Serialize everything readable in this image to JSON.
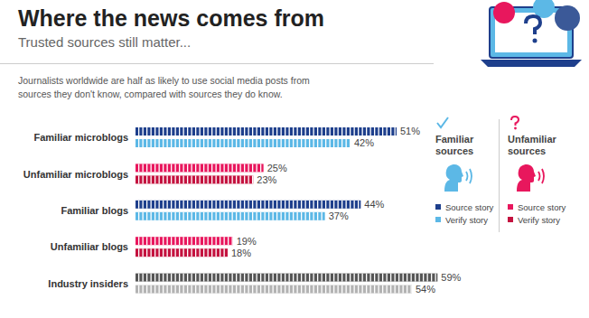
{
  "chart_data": {
    "type": "bar",
    "orientation": "horizontal",
    "title": "Where the news comes from",
    "subtitle": "Trusted sources still matter...",
    "description": [
      "Journalists worldwide are half as likely to use social media posts from",
      "sources they don't know, compared with sources they do know."
    ],
    "categories": [
      "Familiar microblogs",
      "Unfamiliar microblogs",
      "Familiar blogs",
      "Unfamiliar blogs",
      "Industry insiders"
    ],
    "xlim": [
      0,
      60
    ],
    "tick_labels": "y",
    "data_labels": true,
    "series": [
      {
        "name": "Source story",
        "colors": [
          "#1e3f8c",
          "#e8175d",
          "#1e3f8c",
          "#e8175d",
          "#555555"
        ],
        "values": [
          51,
          25,
          44,
          19,
          59
        ],
        "value_labels": [
          "51%",
          "25%",
          "44%",
          "19%",
          "59%"
        ]
      },
      {
        "name": "Verify story",
        "colors": [
          "#5cb8e6",
          "#c4123f",
          "#5cb8e6",
          "#c4123f",
          "#b3b3b3"
        ],
        "values": [
          42,
          23,
          37,
          18,
          54
        ],
        "value_labels": [
          "42%",
          "23%",
          "37%",
          "18%",
          "54%"
        ]
      }
    ],
    "legend_groups": [
      {
        "title": "Familiar sources",
        "items": [
          {
            "name": "Source story",
            "color": "#1e3f8c"
          },
          {
            "name": "Verify story",
            "color": "#5cb8e6"
          }
        ]
      },
      {
        "title": "Unfamiliar sources",
        "items": [
          {
            "name": "Source story",
            "color": "#e8175d"
          },
          {
            "name": "Verify story",
            "color": "#c4123f"
          }
        ]
      }
    ]
  }
}
